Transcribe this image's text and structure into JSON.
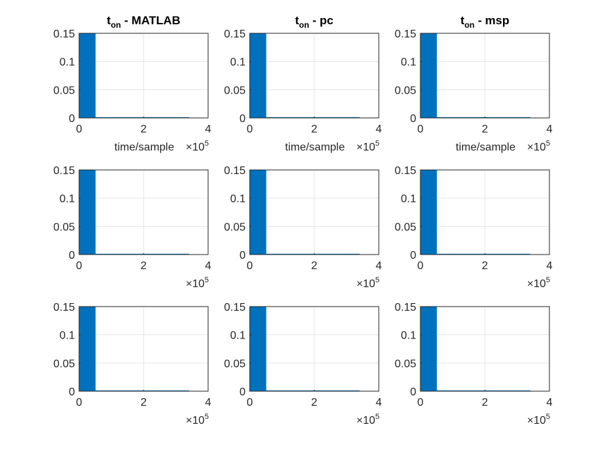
{
  "figure": {
    "background": "#ffffff",
    "bar_color": "#0072bd",
    "grid_color": "#e6e6e6",
    "axis_color": "#262626"
  },
  "chart_data": [
    {
      "type": "area",
      "title_main": "t",
      "title_sub": "on",
      "title_rest": " - MATLAB",
      "xlabel": "time/sample",
      "x_exponent": "×10",
      "x_exponent_power": "5",
      "xlim": [
        0,
        4
      ],
      "ylim": [
        0,
        0.15
      ],
      "xticks": [
        "0",
        "2",
        "4"
      ],
      "yticks": [
        "0",
        "0.05",
        "0.1",
        "0.15"
      ],
      "grid": true,
      "x": [
        0,
        0.5,
        0.5,
        3.4
      ],
      "y": [
        0.15,
        0.15,
        0.0008,
        0.0008
      ]
    },
    {
      "type": "area",
      "title_main": "t",
      "title_sub": "on",
      "title_rest": " - pc",
      "xlabel": "time/sample",
      "x_exponent": "×10",
      "x_exponent_power": "5",
      "xlim": [
        0,
        4
      ],
      "ylim": [
        0,
        0.15
      ],
      "xticks": [
        "0",
        "2",
        "4"
      ],
      "yticks": [
        "0",
        "0.05",
        "0.1",
        "0.15"
      ],
      "grid": true,
      "x": [
        0,
        0.5,
        0.5,
        3.4
      ],
      "y": [
        0.15,
        0.15,
        0.0008,
        0.0008
      ]
    },
    {
      "type": "area",
      "title_main": "t",
      "title_sub": "on",
      "title_rest": " - msp",
      "xlabel": "time/sample",
      "x_exponent": "×10",
      "x_exponent_power": "5",
      "xlim": [
        0,
        4
      ],
      "ylim": [
        0,
        0.15
      ],
      "xticks": [
        "0",
        "2",
        "4"
      ],
      "yticks": [
        "0",
        "0.05",
        "0.1",
        "0.15"
      ],
      "grid": true,
      "x": [
        0,
        0.5,
        0.5,
        3.4
      ],
      "y": [
        0.15,
        0.15,
        0.0008,
        0.0008
      ]
    },
    {
      "type": "area",
      "title_main": "",
      "title_sub": "",
      "title_rest": "",
      "xlabel": "",
      "x_exponent": "×10",
      "x_exponent_power": "5",
      "xlim": [
        0,
        4
      ],
      "ylim": [
        0,
        0.15
      ],
      "xticks": [
        "0",
        "2",
        "4"
      ],
      "yticks": [
        "0",
        "0.05",
        "0.1",
        "0.15"
      ],
      "grid": true,
      "x": [
        0,
        0.5,
        0.5,
        3.4
      ],
      "y": [
        0.15,
        0.15,
        0.0008,
        0.0008
      ]
    },
    {
      "type": "area",
      "title_main": "",
      "title_sub": "",
      "title_rest": "",
      "xlabel": "",
      "x_exponent": "×10",
      "x_exponent_power": "5",
      "xlim": [
        0,
        4
      ],
      "ylim": [
        0,
        0.15
      ],
      "xticks": [
        "0",
        "2",
        "4"
      ],
      "yticks": [
        "0",
        "0.05",
        "0.1",
        "0.15"
      ],
      "grid": true,
      "x": [
        0,
        0.5,
        0.5,
        3.4
      ],
      "y": [
        0.15,
        0.15,
        0.0008,
        0.0008
      ]
    },
    {
      "type": "area",
      "title_main": "",
      "title_sub": "",
      "title_rest": "",
      "xlabel": "",
      "x_exponent": "×10",
      "x_exponent_power": "5",
      "xlim": [
        0,
        4
      ],
      "ylim": [
        0,
        0.15
      ],
      "xticks": [
        "0",
        "2",
        "4"
      ],
      "yticks": [
        "0",
        "0.05",
        "0.1",
        "0.15"
      ],
      "grid": true,
      "x": [
        0,
        0.5,
        0.5,
        3.4
      ],
      "y": [
        0.15,
        0.15,
        0.0008,
        0.0008
      ]
    },
    {
      "type": "area",
      "title_main": "",
      "title_sub": "",
      "title_rest": "",
      "xlabel": "",
      "x_exponent": "×10",
      "x_exponent_power": "5",
      "xlim": [
        0,
        4
      ],
      "ylim": [
        0,
        0.15
      ],
      "xticks": [
        "0",
        "2",
        "4"
      ],
      "yticks": [
        "0",
        "0.05",
        "0.1",
        "0.15"
      ],
      "grid": true,
      "x": [
        0,
        0.5,
        0.5,
        3.4
      ],
      "y": [
        0.15,
        0.15,
        0.0008,
        0.0008
      ]
    },
    {
      "type": "area",
      "title_main": "",
      "title_sub": "",
      "title_rest": "",
      "xlabel": "",
      "x_exponent": "×10",
      "x_exponent_power": "5",
      "xlim": [
        0,
        4
      ],
      "ylim": [
        0,
        0.15
      ],
      "xticks": [
        "0",
        "2",
        "4"
      ],
      "yticks": [
        "0",
        "0.05",
        "0.1",
        "0.15"
      ],
      "grid": true,
      "x": [
        0,
        0.5,
        0.5,
        3.4
      ],
      "y": [
        0.15,
        0.15,
        0.0008,
        0.0008
      ]
    },
    {
      "type": "area",
      "title_main": "",
      "title_sub": "",
      "title_rest": "",
      "xlabel": "",
      "x_exponent": "×10",
      "x_exponent_power": "5",
      "xlim": [
        0,
        4
      ],
      "ylim": [
        0,
        0.15
      ],
      "xticks": [
        "0",
        "2",
        "4"
      ],
      "yticks": [
        "0",
        "0.05",
        "0.1",
        "0.15"
      ],
      "grid": true,
      "x": [
        0,
        0.5,
        0.5,
        3.4
      ],
      "y": [
        0.15,
        0.15,
        0.0008,
        0.0008
      ]
    }
  ]
}
